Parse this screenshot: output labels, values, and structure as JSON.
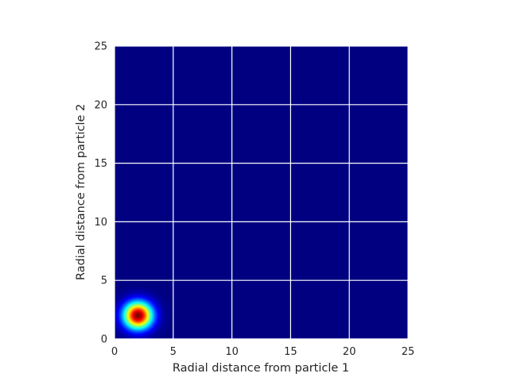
{
  "chart_data": {
    "type": "heatmap",
    "title": "",
    "xlabel": "Radial distance from particle 1",
    "ylabel": "Radial distance from particle 2",
    "xlim": [
      0,
      25
    ],
    "ylim": [
      25,
      0
    ],
    "x_ticks": [
      0,
      5,
      10,
      15,
      20,
      25
    ],
    "y_ticks": [
      0,
      5,
      10,
      15,
      20,
      25
    ],
    "colormap": "jet",
    "grid": true,
    "grid_color": "#ffffff",
    "peak": {
      "x": 2,
      "y": 2,
      "sigma_x": 0.85,
      "sigma_y": 0.8
    },
    "value_range": [
      0,
      1
    ],
    "background_value": 0
  }
}
